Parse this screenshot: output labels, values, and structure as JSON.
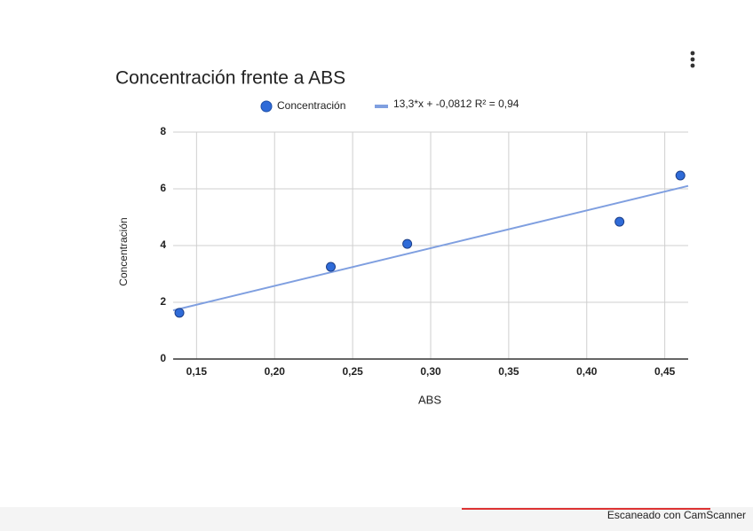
{
  "chart_data": {
    "type": "scatter",
    "title": "Concentración frente a ABS",
    "x_label": "ABS",
    "y_label": "Concentración",
    "x": [
      0.139,
      0.236,
      0.285,
      0.421,
      0.46
    ],
    "series": [
      {
        "name": "Concentración",
        "color": "#2f6bd8",
        "values": [
          1.63,
          3.25,
          4.06,
          4.84,
          6.47
        ]
      }
    ],
    "trendline": {
      "label": "13,3*x + -0,0812 R² = 0,94",
      "slope": 13.3,
      "intercept": -0.0812,
      "r2": 0.94,
      "color": "#7f9fe0"
    },
    "xlim": [
      0.135,
      0.465
    ],
    "ylim": [
      0,
      8
    ],
    "xticks": [
      {
        "value": 0.15,
        "label": "0,15"
      },
      {
        "value": 0.2,
        "label": "0,20"
      },
      {
        "value": 0.25,
        "label": "0,25"
      },
      {
        "value": 0.3,
        "label": "0,30"
      },
      {
        "value": 0.35,
        "label": "0,35"
      },
      {
        "value": 0.4,
        "label": "0,40"
      },
      {
        "value": 0.45,
        "label": "0,45"
      }
    ],
    "yticks": [
      0,
      2,
      4,
      6,
      8
    ],
    "grid": true
  },
  "watermark": "Escaneado con CamScanner"
}
